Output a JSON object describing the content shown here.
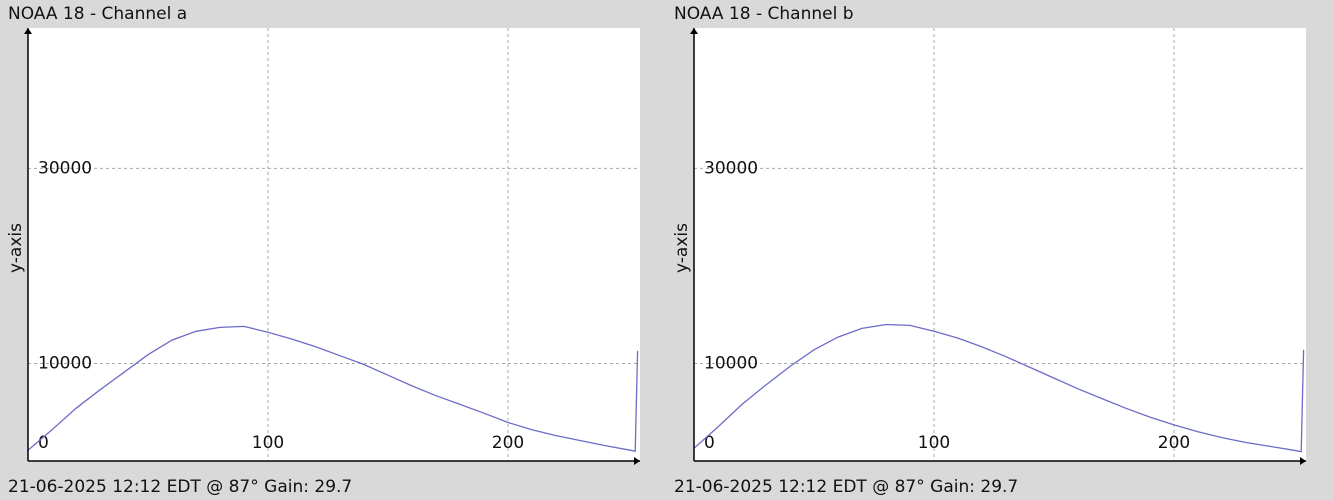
{
  "chart_data": [
    {
      "type": "line",
      "title": "NOAA 18 - Channel a",
      "footer": "21-06-2025 12:12 EDT @ 87° Gain: 29.7",
      "y_label": "y-axis",
      "x": [
        0,
        10,
        20,
        30,
        40,
        50,
        60,
        70,
        80,
        90,
        100,
        110,
        120,
        130,
        140,
        150,
        160,
        170,
        180,
        190,
        200,
        210,
        220,
        230,
        240,
        250,
        253,
        254
      ],
      "values": [
        1100,
        3200,
        5400,
        7300,
        9100,
        10900,
        12400,
        13300,
        13700,
        13800,
        13200,
        12500,
        11700,
        10800,
        9900,
        8800,
        7700,
        6700,
        5800,
        4900,
        3950,
        3200,
        2600,
        2100,
        1600,
        1150,
        1000,
        11300
      ],
      "color": "#6c6cc8",
      "xlim": [
        0,
        255
      ],
      "ylim": [
        0,
        44400
      ],
      "xticks": [
        100,
        200
      ],
      "yticks": [
        0,
        10000,
        30000
      ],
      "grid": true
    },
    {
      "type": "line",
      "title": "NOAA 18 - Channel b",
      "footer": "21-06-2025 12:12 EDT @ 87° Gain: 29.7",
      "y_label": "y-axis",
      "x": [
        0,
        10,
        20,
        30,
        40,
        50,
        60,
        70,
        80,
        90,
        100,
        110,
        120,
        130,
        140,
        150,
        160,
        170,
        180,
        190,
        200,
        210,
        220,
        230,
        240,
        250,
        253,
        254
      ],
      "values": [
        1300,
        3500,
        5800,
        7800,
        9700,
        11400,
        12700,
        13600,
        14000,
        13900,
        13300,
        12600,
        11700,
        10700,
        9600,
        8500,
        7400,
        6400,
        5400,
        4500,
        3700,
        3000,
        2400,
        1900,
        1500,
        1100,
        950,
        11400
      ],
      "color": "#6c6cc8",
      "xlim": [
        0,
        255
      ],
      "ylim": [
        0,
        44400
      ],
      "xticks": [
        100,
        200
      ],
      "yticks": [
        0,
        10000,
        30000
      ],
      "grid": true
    }
  ]
}
